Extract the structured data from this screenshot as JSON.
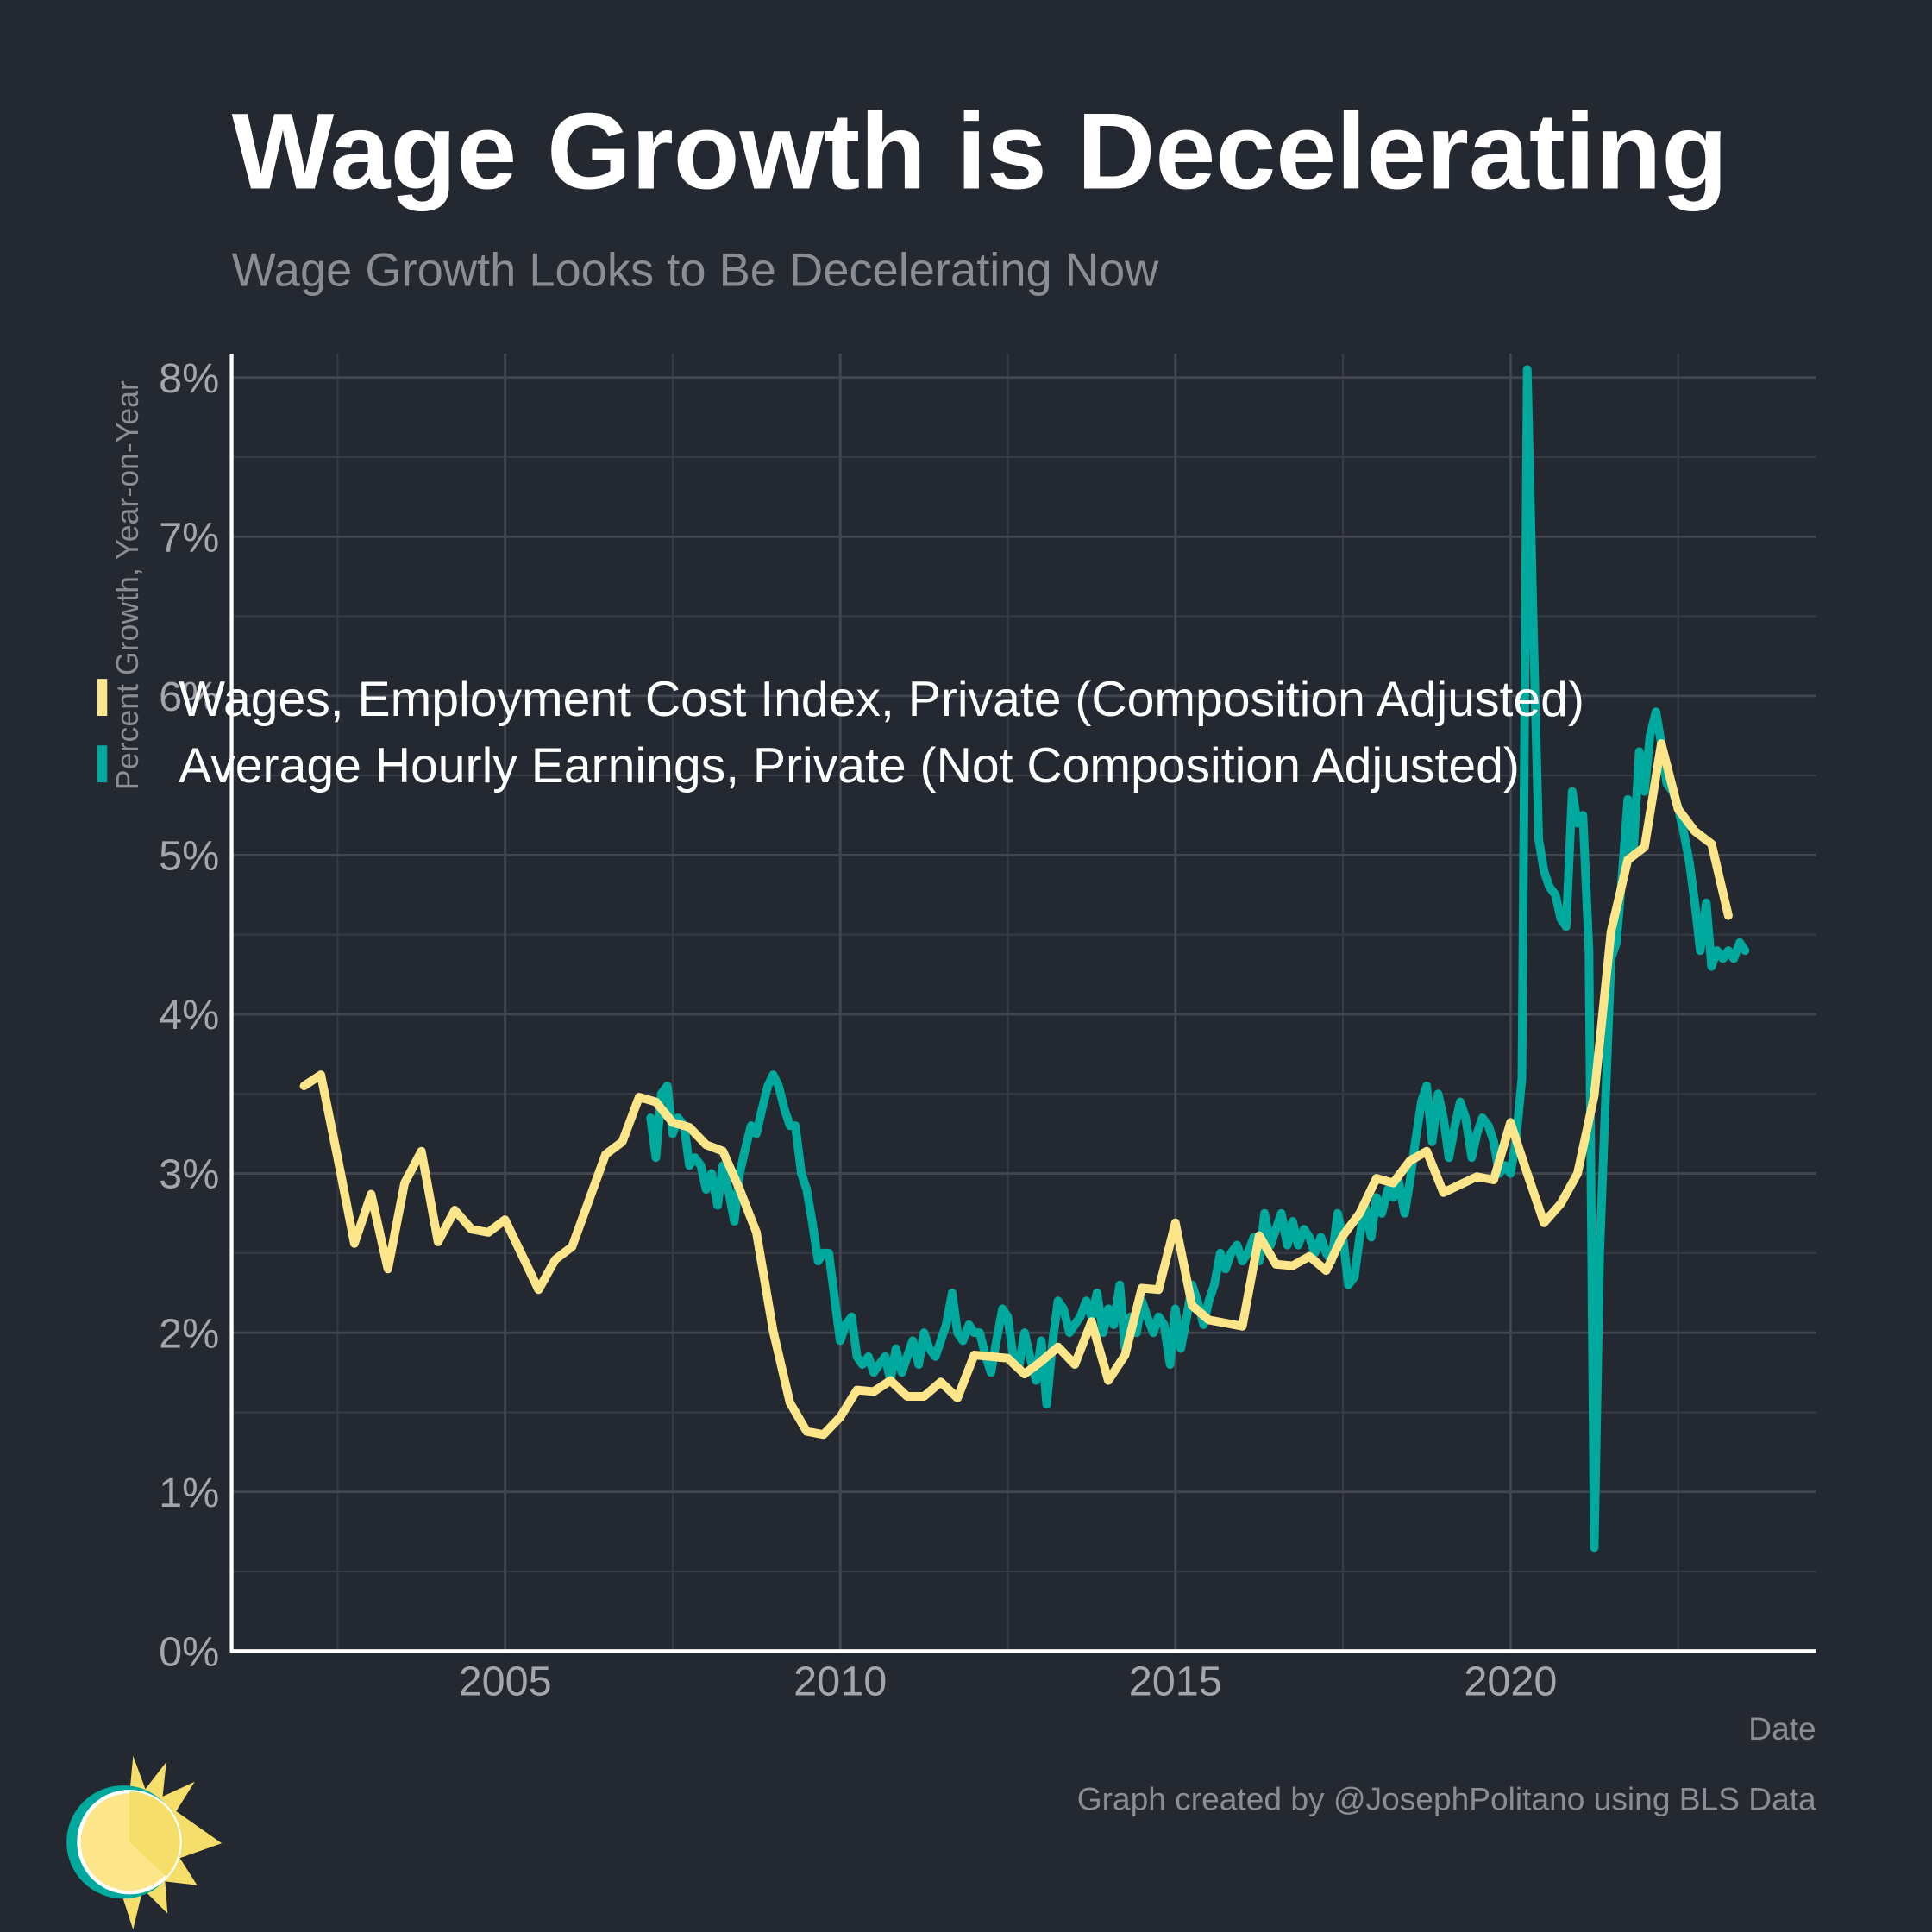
{
  "chart_data": {
    "type": "line",
    "title": "Wage Growth is Decelerating",
    "subtitle": "Wage Growth Looks to Be Decelerating Now",
    "y_label": "Percent Growth, Year-on-Year",
    "x_label": "Date",
    "caption": "Graph created by @JosephPolitano using BLS Data",
    "xlim": [
      2000.92,
      2024.56
    ],
    "ylim": [
      0,
      8.15
    ],
    "xticks": [
      2005,
      2010,
      2015,
      2020
    ],
    "x_minor_ticks": [
      2002.5,
      2007.5,
      2012.5,
      2017.5,
      2022.5
    ],
    "yticks": [
      {
        "value": 0,
        "label": "0%"
      },
      {
        "value": 1,
        "label": "1%"
      },
      {
        "value": 2,
        "label": "2%"
      },
      {
        "value": 3,
        "label": "3%"
      },
      {
        "value": 4,
        "label": "4%"
      },
      {
        "value": 5,
        "label": "5%"
      },
      {
        "value": 6,
        "label": "6%"
      },
      {
        "value": 7,
        "label": "7%"
      },
      {
        "value": 8,
        "label": "8%"
      }
    ],
    "y_minor_ticks": [
      0.5,
      1.5,
      2.5,
      3.5,
      4.5,
      5.5,
      6.5,
      7.5
    ],
    "grid": true,
    "legend": "center-left",
    "series": [
      {
        "name": "Wages, Employment Cost Index, Private (Composition Adjusted)",
        "color": "#fde68a",
        "x": [
          2002,
          2002.25,
          2002.5,
          2002.75,
          2003,
          2003.25,
          2003.5,
          2003.75,
          2004,
          2004.25,
          2004.5,
          2004.75,
          2005,
          2005.25,
          2005.5,
          2005.75,
          2006,
          2006.25,
          2006.5,
          2006.75,
          2007,
          2007.25,
          2007.5,
          2007.75,
          2008,
          2008.25,
          2008.5,
          2008.75,
          2009,
          2009.25,
          2009.5,
          2009.75,
          2010,
          2010.25,
          2010.5,
          2010.75,
          2011,
          2011.25,
          2011.5,
          2011.75,
          2012,
          2012.25,
          2012.5,
          2012.75,
          2013,
          2013.25,
          2013.5,
          2013.75,
          2014,
          2014.25,
          2014.5,
          2014.75,
          2015,
          2015.25,
          2015.5,
          2015.75,
          2016,
          2016.25,
          2016.5,
          2016.75,
          2017,
          2017.25,
          2017.5,
          2017.75,
          2018,
          2018.25,
          2018.5,
          2018.75,
          2019,
          2019.25,
          2019.5,
          2019.75,
          2020,
          2020.25,
          2020.5,
          2020.75,
          2021,
          2021.25,
          2021.5,
          2021.75,
          2022,
          2022.25,
          2022.5,
          2022.75,
          2023,
          2023.25
        ],
        "values": [
          3.55,
          3.62,
          3.1,
          2.56,
          2.87,
          2.4,
          2.94,
          3.14,
          2.57,
          2.77,
          2.65,
          2.63,
          2.71,
          2.49,
          2.27,
          2.46,
          2.54,
          2.83,
          3.12,
          3.2,
          3.48,
          3.45,
          3.32,
          3.29,
          3.18,
          3.14,
          2.9,
          2.63,
          2.01,
          1.56,
          1.38,
          1.36,
          1.47,
          1.64,
          1.63,
          1.7,
          1.6,
          1.6,
          1.69,
          1.59,
          1.86,
          1.85,
          1.84,
          1.74,
          1.82,
          1.91,
          1.8,
          2.07,
          1.7,
          1.86,
          2.28,
          2.27,
          2.69,
          2.17,
          2.08,
          2.06,
          2.04,
          2.61,
          2.43,
          2.42,
          2.48,
          2.39,
          2.61,
          2.75,
          2.97,
          2.94,
          3.08,
          3.14,
          2.88,
          2.93,
          2.98,
          2.96,
          3.32,
          3.0,
          2.69,
          2.81,
          3.0,
          3.49,
          4.52,
          4.97,
          5.05,
          5.7,
          5.29,
          5.15,
          5.07,
          4.62
        ]
      },
      {
        "name": "Average Hourly Earnings, Private (Not Composition Adjusted)",
        "color": "#00a99d",
        "x": [
          2007.17,
          2007.25,
          2007.33,
          2007.42,
          2007.5,
          2007.58,
          2007.67,
          2007.75,
          2007.83,
          2007.92,
          2008,
          2008.08,
          2008.17,
          2008.25,
          2008.33,
          2008.42,
          2008.5,
          2008.58,
          2008.67,
          2008.75,
          2008.83,
          2008.92,
          2009,
          2009.08,
          2009.17,
          2009.25,
          2009.33,
          2009.42,
          2009.5,
          2009.58,
          2009.67,
          2009.75,
          2009.83,
          2009.92,
          2010,
          2010.08,
          2010.17,
          2010.25,
          2010.33,
          2010.42,
          2010.5,
          2010.58,
          2010.67,
          2010.75,
          2010.83,
          2010.92,
          2011,
          2011.08,
          2011.17,
          2011.25,
          2011.33,
          2011.42,
          2011.5,
          2011.58,
          2011.67,
          2011.75,
          2011.83,
          2011.92,
          2012,
          2012.08,
          2012.17,
          2012.25,
          2012.33,
          2012.42,
          2012.5,
          2012.58,
          2012.67,
          2012.75,
          2012.83,
          2012.92,
          2013,
          2013.08,
          2013.17,
          2013.25,
          2013.33,
          2013.42,
          2013.5,
          2013.58,
          2013.67,
          2013.75,
          2013.83,
          2013.92,
          2014,
          2014.08,
          2014.17,
          2014.25,
          2014.33,
          2014.42,
          2014.5,
          2014.58,
          2014.67,
          2014.75,
          2014.83,
          2014.92,
          2015,
          2015.08,
          2015.17,
          2015.25,
          2015.33,
          2015.42,
          2015.5,
          2015.58,
          2015.67,
          2015.75,
          2015.83,
          2015.92,
          2016,
          2016.08,
          2016.17,
          2016.25,
          2016.33,
          2016.42,
          2016.5,
          2016.58,
          2016.67,
          2016.75,
          2016.83,
          2016.92,
          2017,
          2017.08,
          2017.17,
          2017.25,
          2017.33,
          2017.42,
          2017.5,
          2017.58,
          2017.67,
          2017.75,
          2017.83,
          2017.92,
          2018,
          2018.08,
          2018.17,
          2018.25,
          2018.33,
          2018.42,
          2018.5,
          2018.58,
          2018.67,
          2018.75,
          2018.83,
          2018.92,
          2019,
          2019.08,
          2019.17,
          2019.25,
          2019.33,
          2019.42,
          2019.5,
          2019.58,
          2019.67,
          2019.75,
          2019.83,
          2019.92,
          2020,
          2020.08,
          2020.17,
          2020.25,
          2020.33,
          2020.42,
          2020.5,
          2020.58,
          2020.67,
          2020.75,
          2020.83,
          2020.92,
          2021,
          2021.08,
          2021.17,
          2021.25,
          2021.33,
          2021.42,
          2021.5,
          2021.58,
          2021.67,
          2021.75,
          2021.83,
          2021.92,
          2022,
          2022.08,
          2022.17,
          2022.25,
          2022.33,
          2022.42,
          2022.5,
          2022.58,
          2022.67,
          2022.75,
          2022.83,
          2022.92,
          2023,
          2023.08,
          2023.17,
          2023.25,
          2023.33,
          2023.42,
          2023.5
        ],
        "values": [
          3.35,
          3.1,
          3.5,
          3.55,
          3.25,
          3.35,
          3.3,
          3.05,
          3.1,
          3.05,
          2.9,
          3.0,
          2.8,
          3.05,
          2.9,
          2.7,
          3.0,
          3.15,
          3.3,
          3.25,
          3.4,
          3.55,
          3.62,
          3.55,
          3.4,
          3.3,
          3.3,
          3.0,
          2.9,
          2.7,
          2.45,
          2.5,
          2.5,
          2.2,
          1.95,
          2.05,
          2.1,
          1.85,
          1.8,
          1.85,
          1.75,
          1.8,
          1.85,
          1.7,
          1.9,
          1.75,
          1.85,
          1.95,
          1.8,
          2.0,
          1.9,
          1.85,
          1.95,
          2.05,
          2.25,
          2.0,
          1.95,
          2.05,
          2.0,
          2.0,
          1.85,
          1.75,
          1.95,
          2.15,
          2.1,
          1.85,
          1.8,
          2.0,
          1.85,
          1.7,
          1.95,
          1.55,
          1.95,
          2.2,
          2.15,
          2.0,
          2.05,
          2.1,
          2.2,
          2.1,
          2.25,
          2.0,
          2.15,
          2.05,
          2.3,
          1.9,
          2.1,
          2.0,
          2.2,
          2.1,
          2.0,
          2.1,
          2.05,
          1.8,
          2.15,
          1.9,
          2.1,
          2.3,
          2.2,
          2.05,
          2.2,
          2.3,
          2.5,
          2.4,
          2.5,
          2.55,
          2.45,
          2.5,
          2.6,
          2.45,
          2.75,
          2.55,
          2.65,
          2.75,
          2.55,
          2.7,
          2.55,
          2.65,
          2.6,
          2.5,
          2.6,
          2.5,
          2.45,
          2.75,
          2.6,
          2.3,
          2.35,
          2.6,
          2.8,
          2.6,
          2.85,
          2.75,
          2.9,
          2.85,
          2.95,
          2.75,
          2.95,
          3.2,
          3.45,
          3.55,
          3.2,
          3.5,
          3.35,
          3.1,
          3.3,
          3.45,
          3.35,
          3.1,
          3.25,
          3.35,
          3.3,
          3.2,
          3.0,
          3.05,
          3.0,
          3.2,
          3.6,
          8.05,
          6.6,
          5.1,
          4.9,
          4.8,
          4.75,
          4.6,
          4.55,
          5.4,
          5.2,
          5.25,
          4.4,
          0.65,
          2.5,
          3.5,
          4.35,
          4.45,
          4.9,
          5.35,
          5.0,
          5.65,
          5.4,
          5.75,
          5.9,
          5.7,
          5.45,
          5.4,
          5.3,
          5.15,
          4.95,
          4.7,
          4.4,
          4.7,
          4.3,
          4.4,
          4.35,
          4.4,
          4.35,
          4.45,
          4.4
        ]
      }
    ]
  }
}
